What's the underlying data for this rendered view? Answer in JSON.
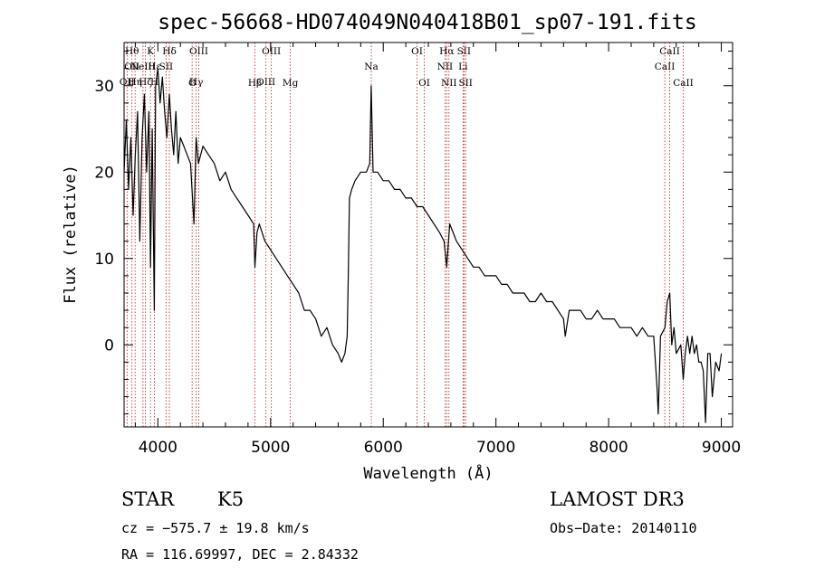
{
  "chart_data": {
    "type": "line",
    "title": "spec-56668-HD074049N040418B01_sp07-191.fits",
    "xlabel": "Wavelength (Å)",
    "ylabel": "Flux (relative)",
    "xlim": [
      3700,
      9100
    ],
    "ylim": [
      -9.5,
      35
    ],
    "x_ticks": [
      4000,
      5000,
      6000,
      7000,
      8000,
      9000
    ],
    "y_ticks": [
      0,
      10,
      20,
      30
    ],
    "line_color": "#000000",
    "marker_color": "#b22222",
    "series": [
      {
        "name": "flux",
        "x": [
          3700,
          3720,
          3740,
          3760,
          3780,
          3800,
          3820,
          3840,
          3860,
          3880,
          3900,
          3920,
          3935,
          3950,
          3968,
          3980,
          4000,
          4020,
          4040,
          4060,
          4080,
          4102,
          4120,
          4140,
          4160,
          4180,
          4200,
          4230,
          4260,
          4290,
          4320,
          4340,
          4360,
          4400,
          4450,
          4500,
          4550,
          4600,
          4650,
          4700,
          4750,
          4800,
          4850,
          4861,
          4880,
          4900,
          4950,
          5000,
          5050,
          5100,
          5150,
          5200,
          5250,
          5300,
          5350,
          5400,
          5450,
          5500,
          5550,
          5600,
          5630,
          5660,
          5680,
          5690,
          5700,
          5720,
          5750,
          5800,
          5850,
          5880,
          5893,
          5910,
          5950,
          6000,
          6050,
          6100,
          6150,
          6200,
          6250,
          6300,
          6350,
          6400,
          6450,
          6500,
          6540,
          6563,
          6590,
          6620,
          6650,
          6700,
          6750,
          6800,
          6850,
          6900,
          6950,
          7000,
          7050,
          7100,
          7150,
          7200,
          7250,
          7300,
          7350,
          7400,
          7450,
          7500,
          7550,
          7600,
          7615,
          7650,
          7700,
          7750,
          7800,
          7850,
          7900,
          7950,
          8000,
          8050,
          8100,
          8150,
          8200,
          8250,
          8300,
          8350,
          8400,
          8430,
          8440,
          8460,
          8500,
          8520,
          8542,
          8560,
          8580,
          8600,
          8640,
          8662,
          8680,
          8700,
          8720,
          8740,
          8760,
          8780,
          8800,
          8820,
          8840,
          8860,
          8880,
          8900,
          8920,
          8950,
          8980,
          9000
        ],
        "y": [
          20,
          26,
          18,
          24,
          15,
          22,
          27,
          12,
          24,
          29,
          20,
          27,
          9,
          25,
          4,
          30,
          32,
          28,
          31,
          27,
          24,
          29,
          25,
          22,
          27,
          21,
          24,
          23,
          22,
          21,
          14,
          24,
          21,
          23,
          22,
          21,
          19,
          20,
          18,
          17,
          16,
          15,
          14,
          9,
          13,
          14,
          12,
          11,
          10,
          9,
          8,
          7,
          6,
          4,
          4,
          3,
          1,
          2,
          0,
          -1,
          -2,
          -1,
          1,
          8,
          17,
          18,
          19,
          20,
          20,
          21,
          30,
          20,
          20,
          19,
          19,
          18,
          18,
          17,
          17,
          16,
          16,
          15,
          14,
          13,
          12,
          9,
          14,
          13,
          12,
          11,
          10,
          9,
          9,
          8,
          8,
          8,
          7,
          7,
          6,
          6,
          6,
          5,
          5,
          6,
          5,
          5,
          4,
          3,
          1,
          4,
          4,
          4,
          3,
          3,
          4,
          3,
          3,
          3,
          2,
          2,
          2,
          1,
          2,
          1,
          1,
          -5,
          -8,
          1,
          2,
          5,
          6,
          0,
          2,
          -1,
          0,
          -4,
          -1,
          1,
          -1,
          1,
          -1,
          0,
          -2,
          -2,
          -3,
          -9,
          -1,
          -1,
          -6,
          -2,
          -3,
          -1
        ]
      }
    ],
    "line_markers": [
      {
        "wavelength": 3727,
        "labels": [
          {
            "text": "OII",
            "row": 3
          }
        ]
      },
      {
        "wavelength": 3770,
        "labels": [
          {
            "text": "Hθ",
            "row": 1
          },
          {
            "text": "OII",
            "row": 2
          }
        ]
      },
      {
        "wavelength": 3798,
        "labels": [
          {
            "text": "Hη",
            "row": 3
          }
        ]
      },
      {
        "wavelength": 3868,
        "labels": [
          {
            "text": "NeIII",
            "row": 2
          }
        ]
      },
      {
        "wavelength": 3889,
        "labels": [
          {
            "text": "Hζ",
            "row": 3
          }
        ]
      },
      {
        "wavelength": 3934,
        "labels": [
          {
            "text": "K",
            "row": 1
          }
        ]
      },
      {
        "wavelength": 3970,
        "labels": [
          {
            "text": "Hε",
            "row": 2
          },
          {
            "text": "H",
            "row": 3
          }
        ]
      },
      {
        "wavelength": 4073,
        "labels": [
          {
            "text": "SII",
            "row": 2
          }
        ]
      },
      {
        "wavelength": 4102,
        "labels": [
          {
            "text": "Hδ",
            "row": 1
          }
        ]
      },
      {
        "wavelength": 4304,
        "labels": [
          {
            "text": "G",
            "row": 4
          }
        ]
      },
      {
        "wavelength": 4340,
        "labels": [
          {
            "text": "Hγ",
            "row": 3
          }
        ]
      },
      {
        "wavelength": 4363,
        "labels": [
          {
            "text": "OIII",
            "row": 1
          }
        ]
      },
      {
        "wavelength": 4861,
        "labels": [
          {
            "text": "Hβ",
            "row": 4
          }
        ]
      },
      {
        "wavelength": 4959,
        "labels": [
          {
            "text": "OIII",
            "row": 3
          }
        ]
      },
      {
        "wavelength": 5007,
        "labels": [
          {
            "text": "OIII",
            "row": 1
          }
        ]
      },
      {
        "wavelength": 5175,
        "labels": [
          {
            "text": "Mg",
            "row": 4
          }
        ]
      },
      {
        "wavelength": 5894,
        "labels": [
          {
            "text": "Na",
            "row": 2
          }
        ]
      },
      {
        "wavelength": 6300,
        "labels": [
          {
            "text": "OI",
            "row": 1
          }
        ]
      },
      {
        "wavelength": 6364,
        "labels": [
          {
            "text": "OI",
            "row": 4
          }
        ]
      },
      {
        "wavelength": 6548,
        "labels": [
          {
            "text": "NII",
            "row": 2
          }
        ]
      },
      {
        "wavelength": 6563,
        "labels": [
          {
            "text": "Hα",
            "row": 1
          }
        ]
      },
      {
        "wavelength": 6583,
        "labels": [
          {
            "text": "NII",
            "row": 4
          }
        ]
      },
      {
        "wavelength": 6708,
        "labels": [
          {
            "text": "Li",
            "row": 2
          }
        ]
      },
      {
        "wavelength": 6716,
        "labels": [
          {
            "text": "SII",
            "row": 1
          }
        ]
      },
      {
        "wavelength": 6731,
        "labels": [
          {
            "text": "SII",
            "row": 4
          }
        ]
      },
      {
        "wavelength": 8498,
        "labels": [
          {
            "text": "CaII",
            "row": 2
          }
        ]
      },
      {
        "wavelength": 8542,
        "labels": [
          {
            "text": "CaII",
            "row": 1
          }
        ]
      },
      {
        "wavelength": 8662,
        "labels": [
          {
            "text": "CaII",
            "row": 4
          }
        ]
      }
    ]
  },
  "info": {
    "object_class": "STAR",
    "subclass": "K5",
    "survey": "LAMOST DR3",
    "redshift_line": "cz = −575.7 ± 19.8 km/s",
    "obs_date_line": "Obs−Date: 20140110",
    "coords_line": "RA = 116.69997, DEC =    2.84332"
  }
}
